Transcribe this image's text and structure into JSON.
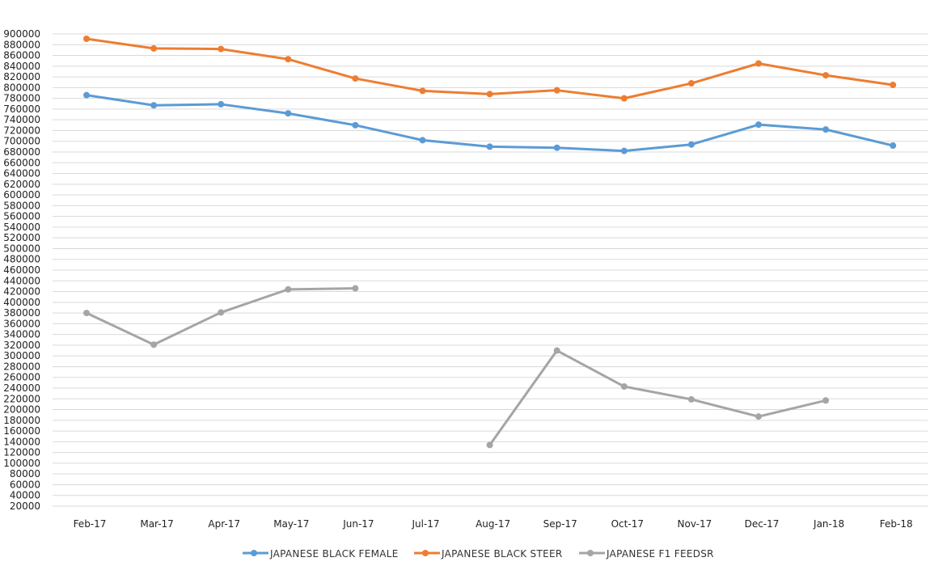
{
  "chart_data": {
    "type": "line",
    "title": "",
    "xlabel": "",
    "ylabel": "",
    "grid": true,
    "legend_position": "bottom",
    "categories": [
      "Feb-17",
      "Mar-17",
      "Apr-17",
      "May-17",
      "Jun-17",
      "Jul-17",
      "Aug-17",
      "Sep-17",
      "Oct-17",
      "Nov-17",
      "Dec-17",
      "Jan-18",
      "Feb-18"
    ],
    "y_ticks": [
      20000,
      40000,
      60000,
      80000,
      100000,
      120000,
      140000,
      160000,
      180000,
      200000,
      220000,
      240000,
      260000,
      280000,
      300000,
      320000,
      340000,
      360000,
      380000,
      400000,
      420000,
      440000,
      460000,
      480000,
      500000,
      520000,
      540000,
      560000,
      580000,
      600000,
      620000,
      640000,
      660000,
      680000,
      700000,
      720000,
      740000,
      760000,
      780000,
      800000,
      820000,
      840000,
      860000,
      880000,
      900000
    ],
    "ylim": [
      20000,
      900000
    ],
    "series": [
      {
        "name": "JAPANESE BLACK FEMALE",
        "color": "#5b9bd5",
        "values": [
          786000,
          767000,
          769000,
          752000,
          730000,
          702000,
          690000,
          688000,
          682000,
          694000,
          731000,
          722000,
          692000
        ]
      },
      {
        "name": "JAPANESE BLACK STEER",
        "color": "#ed7d31",
        "values": [
          891000,
          873000,
          872000,
          853000,
          817000,
          794000,
          788000,
          795000,
          780000,
          808000,
          845000,
          823000,
          805000
        ]
      },
      {
        "name": "JAPANESE F1 FEEDSR",
        "color": "#a5a5a5",
        "values": [
          380000,
          321000,
          381000,
          424000,
          426000,
          null,
          134000,
          310000,
          243000,
          219000,
          187000,
          217000,
          null
        ]
      }
    ]
  }
}
